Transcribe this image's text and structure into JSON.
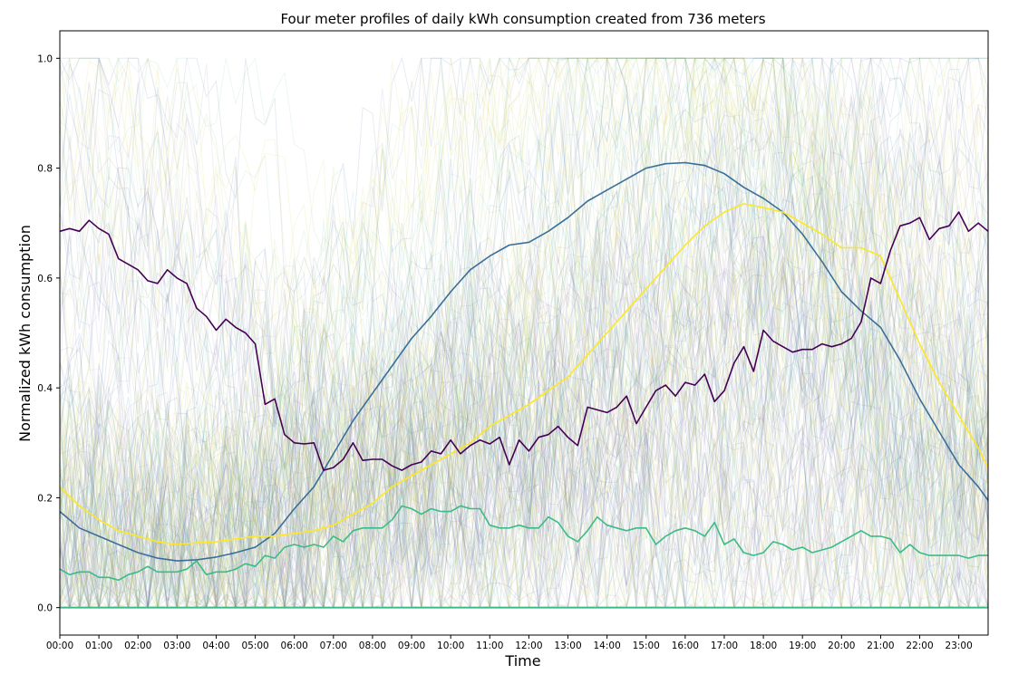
{
  "chart_data": {
    "type": "line",
    "title": "Four meter profiles of daily kWh consumption created from 736 meters",
    "xlabel": "Time",
    "ylabel": "Normalized kWh consumption",
    "x_ticks": [
      "00:00",
      "01:00",
      "02:00",
      "03:00",
      "04:00",
      "05:00",
      "06:00",
      "07:00",
      "08:00",
      "09:00",
      "10:00",
      "11:00",
      "12:00",
      "13:00",
      "14:00",
      "15:00",
      "16:00",
      "17:00",
      "18:00",
      "19:00",
      "20:00",
      "21:00",
      "22:00",
      "23:00"
    ],
    "y_ticks": [
      "0.0",
      "0.2",
      "0.4",
      "0.6",
      "0.8",
      "1.0"
    ],
    "xlim": [
      0,
      23.75
    ],
    "ylim": [
      -0.05,
      1.05
    ],
    "background_meters": 736,
    "series": [
      {
        "color": "#3b6e97",
        "x": [
          0,
          0.5,
          1,
          1.5,
          2,
          2.5,
          3,
          3.5,
          4,
          4.5,
          5,
          5.5,
          6,
          6.5,
          7,
          7.5,
          8,
          8.5,
          9,
          9.5,
          10,
          10.5,
          11,
          11.5,
          12,
          12.5,
          13,
          13.5,
          14,
          14.5,
          15,
          15.5,
          16,
          16.5,
          17,
          17.5,
          18,
          18.5,
          19,
          19.5,
          20,
          20.5,
          21,
          21.5,
          22,
          22.5,
          23,
          23.5,
          23.75
        ],
        "y": [
          0.175,
          0.145,
          0.13,
          0.115,
          0.1,
          0.09,
          0.085,
          0.087,
          0.092,
          0.1,
          0.11,
          0.135,
          0.18,
          0.22,
          0.28,
          0.34,
          0.39,
          0.44,
          0.49,
          0.53,
          0.575,
          0.615,
          0.64,
          0.66,
          0.665,
          0.685,
          0.71,
          0.74,
          0.76,
          0.78,
          0.8,
          0.808,
          0.81,
          0.805,
          0.79,
          0.765,
          0.745,
          0.72,
          0.68,
          0.63,
          0.575,
          0.54,
          0.51,
          0.45,
          0.38,
          0.32,
          0.26,
          0.22,
          0.195
        ]
      },
      {
        "color": "#fde725",
        "x": [
          0,
          0.5,
          1,
          1.5,
          2,
          2.5,
          3,
          3.5,
          4,
          4.5,
          5,
          5.5,
          6,
          6.5,
          7,
          7.5,
          8,
          8.5,
          9,
          9.5,
          10,
          10.5,
          11,
          11.5,
          12,
          12.5,
          13,
          13.5,
          14,
          14.5,
          15,
          15.5,
          16,
          16.5,
          17,
          17.5,
          18,
          18.5,
          19,
          19.5,
          20,
          20.5,
          21,
          21.5,
          22,
          22.5,
          23,
          23.5,
          23.75
        ],
        "y": [
          0.22,
          0.185,
          0.16,
          0.14,
          0.13,
          0.12,
          0.115,
          0.118,
          0.12,
          0.125,
          0.13,
          0.13,
          0.135,
          0.14,
          0.15,
          0.17,
          0.19,
          0.22,
          0.24,
          0.26,
          0.28,
          0.3,
          0.33,
          0.35,
          0.37,
          0.395,
          0.42,
          0.46,
          0.5,
          0.54,
          0.58,
          0.62,
          0.66,
          0.695,
          0.72,
          0.735,
          0.728,
          0.72,
          0.7,
          0.68,
          0.655,
          0.655,
          0.64,
          0.56,
          0.48,
          0.41,
          0.35,
          0.29,
          0.255
        ]
      },
      {
        "color": "#440154",
        "x": [
          0,
          0.25,
          0.5,
          0.75,
          1,
          1.25,
          1.5,
          1.75,
          2,
          2.25,
          2.5,
          2.75,
          3,
          3.25,
          3.5,
          3.75,
          4,
          4.25,
          4.5,
          4.75,
          5,
          5.25,
          5.5,
          5.75,
          6,
          6.25,
          6.5,
          6.75,
          7,
          7.25,
          7.5,
          7.75,
          8,
          8.25,
          8.5,
          8.75,
          9,
          9.25,
          9.5,
          9.75,
          10,
          10.25,
          10.5,
          10.75,
          11,
          11.25,
          11.5,
          11.75,
          12,
          12.25,
          12.5,
          12.75,
          13,
          13.25,
          13.5,
          13.75,
          14,
          14.25,
          14.5,
          14.75,
          15,
          15.25,
          15.5,
          15.75,
          16,
          16.25,
          16.5,
          16.75,
          17,
          17.25,
          17.5,
          17.75,
          18,
          18.25,
          18.5,
          18.75,
          19,
          19.25,
          19.5,
          19.75,
          20,
          20.25,
          20.5,
          20.75,
          21,
          21.25,
          21.5,
          21.75,
          22,
          22.25,
          22.5,
          22.75,
          23,
          23.25,
          23.5,
          23.75
        ],
        "y": [
          0.685,
          0.69,
          0.685,
          0.705,
          0.69,
          0.68,
          0.635,
          0.625,
          0.615,
          0.595,
          0.59,
          0.615,
          0.6,
          0.59,
          0.545,
          0.53,
          0.505,
          0.525,
          0.51,
          0.5,
          0.48,
          0.37,
          0.38,
          0.315,
          0.3,
          0.298,
          0.3,
          0.25,
          0.255,
          0.27,
          0.3,
          0.268,
          0.27,
          0.27,
          0.258,
          0.25,
          0.26,
          0.265,
          0.285,
          0.28,
          0.305,
          0.28,
          0.295,
          0.305,
          0.298,
          0.31,
          0.26,
          0.305,
          0.285,
          0.31,
          0.315,
          0.33,
          0.31,
          0.295,
          0.365,
          0.36,
          0.355,
          0.365,
          0.385,
          0.335,
          0.365,
          0.395,
          0.405,
          0.385,
          0.41,
          0.405,
          0.425,
          0.375,
          0.395,
          0.445,
          0.475,
          0.43,
          0.505,
          0.485,
          0.475,
          0.465,
          0.47,
          0.47,
          0.48,
          0.475,
          0.48,
          0.49,
          0.52,
          0.6,
          0.59,
          0.65,
          0.695,
          0.7,
          0.71,
          0.67,
          0.69,
          0.695,
          0.72,
          0.685,
          0.7,
          0.685
        ]
      },
      {
        "color": "#3bbc85",
        "x": [
          0,
          0.25,
          0.5,
          0.75,
          1,
          1.25,
          1.5,
          1.75,
          2,
          2.25,
          2.5,
          2.75,
          3,
          3.25,
          3.5,
          3.75,
          4,
          4.25,
          4.5,
          4.75,
          5,
          5.25,
          5.5,
          5.75,
          6,
          6.25,
          6.5,
          6.75,
          7,
          7.25,
          7.5,
          7.75,
          8,
          8.25,
          8.5,
          8.75,
          9,
          9.25,
          9.5,
          9.75,
          10,
          10.25,
          10.5,
          10.75,
          11,
          11.25,
          11.5,
          11.75,
          12,
          12.25,
          12.5,
          12.75,
          13,
          13.25,
          13.5,
          13.75,
          14,
          14.25,
          14.5,
          14.75,
          15,
          15.25,
          15.5,
          15.75,
          16,
          16.25,
          16.5,
          16.75,
          17,
          17.25,
          17.5,
          17.75,
          18,
          18.25,
          18.5,
          18.75,
          19,
          19.25,
          19.5,
          19.75,
          20,
          20.25,
          20.5,
          20.75,
          21,
          21.25,
          21.5,
          21.75,
          22,
          22.25,
          22.5,
          22.75,
          23,
          23.25,
          23.5,
          23.75
        ],
        "y": [
          0.07,
          0.06,
          0.065,
          0.065,
          0.055,
          0.055,
          0.05,
          0.06,
          0.065,
          0.075,
          0.065,
          0.065,
          0.065,
          0.07,
          0.085,
          0.06,
          0.065,
          0.065,
          0.07,
          0.08,
          0.075,
          0.095,
          0.09,
          0.11,
          0.115,
          0.11,
          0.115,
          0.11,
          0.13,
          0.12,
          0.14,
          0.145,
          0.145,
          0.145,
          0.16,
          0.185,
          0.18,
          0.17,
          0.18,
          0.175,
          0.175,
          0.185,
          0.18,
          0.18,
          0.15,
          0.145,
          0.145,
          0.15,
          0.145,
          0.145,
          0.165,
          0.155,
          0.13,
          0.12,
          0.14,
          0.165,
          0.15,
          0.145,
          0.14,
          0.145,
          0.145,
          0.115,
          0.13,
          0.14,
          0.145,
          0.14,
          0.13,
          0.155,
          0.115,
          0.125,
          0.1,
          0.095,
          0.1,
          0.12,
          0.115,
          0.105,
          0.11,
          0.1,
          0.105,
          0.11,
          0.12,
          0.13,
          0.14,
          0.13,
          0.13,
          0.125,
          0.1,
          0.115,
          0.1,
          0.095,
          0.095,
          0.095,
          0.095,
          0.09,
          0.095,
          0.095
        ]
      }
    ]
  }
}
